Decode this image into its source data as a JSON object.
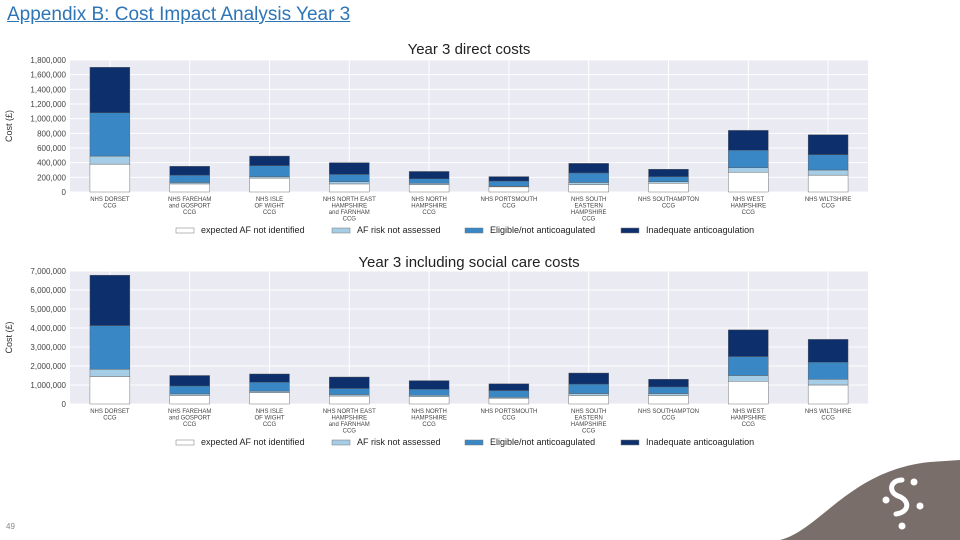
{
  "slide": {
    "title": "Appendix B: Cost Impact Analysis Year 3",
    "page_number": "49"
  },
  "colors": {
    "title": "#2e75b6",
    "plot_background": "#eaeaf2",
    "grid": "#ffffff",
    "corner_shape": "#7a6e6a",
    "logo": "#ffffff"
  },
  "icons": {
    "logo": "molecule-logo-icon"
  },
  "chart_data": [
    {
      "type": "bar",
      "stacked": true,
      "title": "Year 3 direct costs",
      "ylabel": "Cost (£)",
      "xlabel": "",
      "ylim": [
        0,
        1800000
      ],
      "yticks": [
        "0",
        "200,000",
        "400,000",
        "600,000",
        "800,000",
        "1,000,000",
        "1,200,000",
        "1,400,000",
        "1,600,000",
        "1,800,000"
      ],
      "grid": true,
      "legend_position": "bottom",
      "categories": [
        "NHS DORSET CCG",
        "NHS FAREHAM and GOSPORT CCG",
        "NHS ISLE OF WIGHT CCG",
        "NHS NORTH EAST HAMPSHIRE and FARNHAM CCG",
        "NHS NORTH HAMPSHIRE CCG",
        "NHS PORTSMOUTH CCG",
        "NHS SOUTH EASTERN HAMPSHIRE CCG",
        "NHS SOUTHAMPTON CCG",
        "NHS WEST HAMPSHIRE CCG",
        "NHS WILTSHIRE CCG"
      ],
      "category_label_lines": [
        [
          "NHS DORSET",
          "CCG"
        ],
        [
          "NHS FAREHAM",
          "and GOSPORT",
          "CCG"
        ],
        [
          "NHS ISLE",
          "OF WIGHT",
          "CCG"
        ],
        [
          "NHS NORTH EAST",
          "HAMPSHIRE",
          "and FARNHAM",
          "CCG"
        ],
        [
          "NHS NORTH",
          "HAMPSHIRE",
          "CCG"
        ],
        [
          "NHS PORTSMOUTH",
          "CCG"
        ],
        [
          "NHS SOUTH",
          "EASTERN",
          "HAMPSHIRE",
          "CCG"
        ],
        [
          "NHS SOUTHAMPTON",
          "CCG"
        ],
        [
          "NHS WEST",
          "HAMPSHIRE",
          "CCG"
        ],
        [
          "NHS WILTSHIRE",
          "CCG"
        ]
      ],
      "series": [
        {
          "name": "expected AF not identified",
          "color": "#ffffff",
          "values": [
            380000,
            110000,
            190000,
            110000,
            100000,
            70000,
            100000,
            120000,
            270000,
            230000
          ]
        },
        {
          "name": "AF risk not assessed",
          "color": "#a6cde6",
          "values": [
            110000,
            20000,
            20000,
            30000,
            20000,
            10000,
            30000,
            20000,
            60000,
            70000
          ]
        },
        {
          "name": "Eligible/not anticoagulated",
          "color": "#3a87c6",
          "values": [
            590000,
            100000,
            150000,
            100000,
            60000,
            70000,
            130000,
            70000,
            240000,
            210000
          ]
        },
        {
          "name": "Inadequate anticoagulation",
          "color": "#0d2f6b",
          "values": [
            620000,
            120000,
            130000,
            160000,
            100000,
            60000,
            130000,
            100000,
            270000,
            270000
          ]
        }
      ]
    },
    {
      "type": "bar",
      "stacked": true,
      "title": "Year 3 including social care costs",
      "ylabel": "Cost (£)",
      "xlabel": "",
      "ylim": [
        0,
        7000000
      ],
      "yticks": [
        "0",
        "1,000,000",
        "2,000,000",
        "3,000,000",
        "4,000,000",
        "5,000,000",
        "6,000,000",
        "7,000,000"
      ],
      "grid": true,
      "legend_position": "bottom",
      "categories": [
        "NHS DORSET CCG",
        "NHS FAREHAM and GOSPORT CCG",
        "NHS ISLE OF WIGHT CCG",
        "NHS NORTH EAST HAMPSHIRE and FARNHAM CCG",
        "NHS NORTH HAMPSHIRE CCG",
        "NHS PORTSMOUTH CCG",
        "NHS SOUTH EASTERN HAMPSHIRE CCG",
        "NHS SOUTHAMPTON CCG",
        "NHS WEST HAMPSHIRE CCG",
        "NHS WILTSHIRE CCG"
      ],
      "category_label_lines": [
        [
          "NHS DORSET",
          "CCG"
        ],
        [
          "NHS FAREHAM",
          "and GOSPORT",
          "CCG"
        ],
        [
          "NHS ISLE",
          "OF WIGHT",
          "CCG"
        ],
        [
          "NHS NORTH EAST",
          "HAMPSHIRE",
          "and FARNHAM",
          "CCG"
        ],
        [
          "NHS NORTH",
          "HAMPSHIRE",
          "CCG"
        ],
        [
          "NHS PORTSMOUTH",
          "CCG"
        ],
        [
          "NHS SOUTH",
          "EASTERN",
          "HAMPSHIRE",
          "CCG"
        ],
        [
          "NHS SOUTHAMPTON",
          "CCG"
        ],
        [
          "NHS WEST",
          "HAMPSHIRE",
          "CCG"
        ],
        [
          "NHS WILTSHIRE",
          "CCG"
        ]
      ],
      "series": [
        {
          "name": "expected AF not identified",
          "color": "#ffffff",
          "values": [
            1450000,
            450000,
            600000,
            420000,
            380000,
            300000,
            450000,
            450000,
            1200000,
            1000000
          ]
        },
        {
          "name": "AF risk not assessed",
          "color": "#a6cde6",
          "values": [
            380000,
            80000,
            80000,
            80000,
            80000,
            50000,
            100000,
            100000,
            300000,
            300000
          ]
        },
        {
          "name": "Eligible/not anticoagulated",
          "color": "#3a87c6",
          "values": [
            2300000,
            420000,
            470000,
            320000,
            320000,
            360000,
            500000,
            350000,
            1000000,
            900000
          ]
        },
        {
          "name": "Inadequate anticoagulation",
          "color": "#0d2f6b",
          "values": [
            2650000,
            550000,
            430000,
            600000,
            450000,
            350000,
            580000,
            400000,
            1400000,
            1200000
          ]
        }
      ]
    }
  ]
}
